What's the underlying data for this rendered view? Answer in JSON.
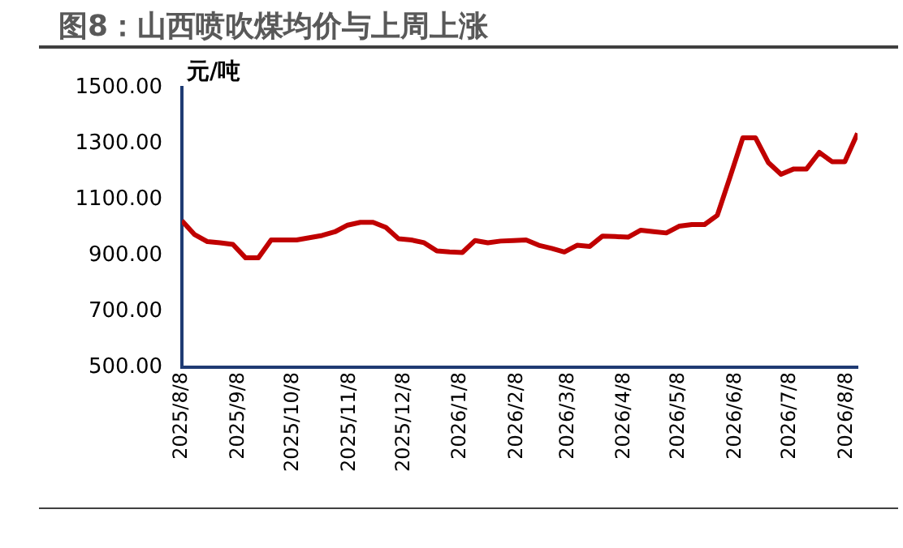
{
  "chart_data": {
    "type": "line",
    "title": "图8：山西喷吹煤均价与上周上涨",
    "ylabel": "元/吨",
    "x": [
      "2025-08-08",
      "2025-08-15",
      "2025-08-22",
      "2025-08-29",
      "2025-09-05",
      "2025-09-12",
      "2025-09-19",
      "2025-09-26",
      "2025-10-03",
      "2025-10-10",
      "2025-10-17",
      "2025-10-24",
      "2025-10-31",
      "2025-11-07",
      "2025-11-14",
      "2025-11-21",
      "2025-11-28",
      "2025-12-05",
      "2025-12-12",
      "2025-12-19",
      "2025-12-26",
      "2026-01-02",
      "2026-01-09",
      "2026-01-16",
      "2026-01-23",
      "2026-01-30",
      "2026-02-06",
      "2026-02-13",
      "2026-02-20",
      "2026-02-27",
      "2026-03-06",
      "2026-03-13",
      "2026-03-20",
      "2026-03-27",
      "2026-04-03",
      "2026-04-10",
      "2026-04-17",
      "2026-04-24",
      "2026-05-01",
      "2026-05-08",
      "2026-05-15",
      "2026-05-22",
      "2026-05-29",
      "2026-06-05",
      "2026-06-12",
      "2026-06-19",
      "2026-06-26",
      "2026-07-03",
      "2026-07-10",
      "2026-07-17",
      "2026-07-24",
      "2026-07-31",
      "2026-08-07",
      "2026-08-14"
    ],
    "series": [
      {
        "color": "#c00000",
        "values": [
          1024,
          974,
          949,
          945,
          939,
          891,
          891,
          955,
          955,
          955,
          963,
          971,
          984,
          1008,
          1018,
          1018,
          1000,
          959,
          955,
          945,
          916,
          912,
          910,
          953,
          945,
          951,
          953,
          955,
          936,
          925,
          912,
          936,
          932,
          969,
          967,
          965,
          990,
          985,
          980,
          1004,
          1010,
          1010,
          1043,
          1180,
          1320,
          1320,
          1232,
          1190,
          1209,
          1209,
          1268,
          1235,
          1235,
          1336
        ]
      }
    ],
    "xlim": [
      "2025-08-08",
      "2026-08-14"
    ],
    "xticks": [
      {
        "value": "2025-08-08",
        "label": "2025/8/8"
      },
      {
        "value": "2025-09-08",
        "label": "2025/9/8"
      },
      {
        "value": "2025-10-08",
        "label": "2025/10/8"
      },
      {
        "value": "2025-11-08",
        "label": "2025/11/8"
      },
      {
        "value": "2025-12-08",
        "label": "2025/12/8"
      },
      {
        "value": "2026-01-08",
        "label": "2026/1/8"
      },
      {
        "value": "2026-02-08",
        "label": "2026/2/8"
      },
      {
        "value": "2026-03-08",
        "label": "2026/3/8"
      },
      {
        "value": "2026-04-08",
        "label": "2026/4/8"
      },
      {
        "value": "2026-05-08",
        "label": "2026/5/8"
      },
      {
        "value": "2026-06-08",
        "label": "2026/6/8"
      },
      {
        "value": "2026-07-08",
        "label": "2026/7/8"
      },
      {
        "value": "2026-08-08",
        "label": "2026/8/8"
      }
    ],
    "ylim": [
      500,
      1500
    ],
    "yticks": [
      {
        "value": 500,
        "label": "500.00"
      },
      {
        "value": 700,
        "label": "700.00"
      },
      {
        "value": 900,
        "label": "900.00"
      },
      {
        "value": 1100,
        "label": "1100.00"
      },
      {
        "value": 1300,
        "label": "1300.00"
      },
      {
        "value": 1500,
        "label": "1500.00"
      }
    ],
    "grid": false,
    "legend": false,
    "marker": "none",
    "line_style": "solid"
  }
}
